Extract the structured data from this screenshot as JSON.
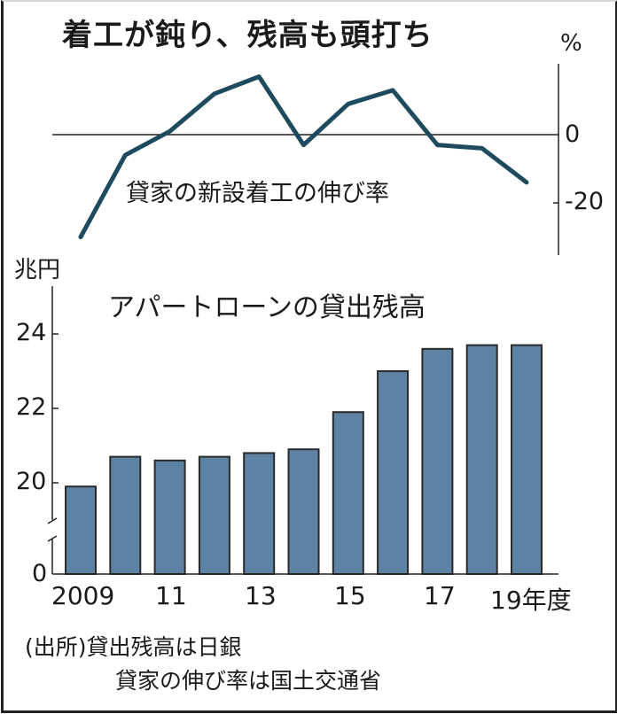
{
  "title": "着工が鈍り、残高も頭打ち",
  "line_chart": {
    "label": "貸家の新設着工の伸び率",
    "unit": "%",
    "ticks": [
      "0",
      "-20"
    ]
  },
  "bar_chart": {
    "label": "アパートローンの貸出残高",
    "unit": "兆円",
    "ticks": [
      "24",
      "22",
      "20",
      "0"
    ],
    "x_labels": [
      "2009",
      "11",
      "13",
      "15",
      "17",
      "19年度"
    ]
  },
  "source": {
    "line1": "(出所)貸出残高は日銀",
    "line2": "貸家の伸び率は国土交通省"
  },
  "colors": {
    "bar_fill": "#5d82a3",
    "bar_border": "#2a2a2a",
    "line": "#1d4a5c"
  },
  "chart_data": [
    {
      "type": "line",
      "title": "貸家の新設着工の伸び率",
      "ylabel": "%",
      "x": [
        "2009",
        "2010",
        "2011",
        "2012",
        "2013",
        "2014",
        "2015",
        "2016",
        "2017",
        "2018",
        "2019"
      ],
      "values": [
        -30,
        -6,
        1,
        12,
        17,
        -3,
        9,
        13,
        -3,
        -4,
        -14
      ],
      "yticks": [
        0,
        -20
      ],
      "ylim": [
        -35,
        20
      ],
      "zero_line": true,
      "axis_position": "right"
    },
    {
      "type": "bar",
      "title": "アパートローンの貸出残高",
      "ylabel": "兆円",
      "xlabel": "年度",
      "categories": [
        "2009",
        "2010",
        "2011",
        "2012",
        "2013",
        "2014",
        "2015",
        "2016",
        "2017",
        "2018",
        "2019"
      ],
      "values": [
        19.9,
        20.7,
        20.6,
        20.7,
        20.8,
        20.9,
        21.9,
        23.0,
        23.6,
        23.7,
        23.7
      ],
      "yticks": [
        0,
        20,
        22,
        24
      ],
      "ylim": [
        0,
        25
      ],
      "axis_break": [
        0,
        20
      ],
      "xtick_labels": [
        "2009",
        "11",
        "13",
        "15",
        "17",
        "19年度"
      ]
    }
  ]
}
